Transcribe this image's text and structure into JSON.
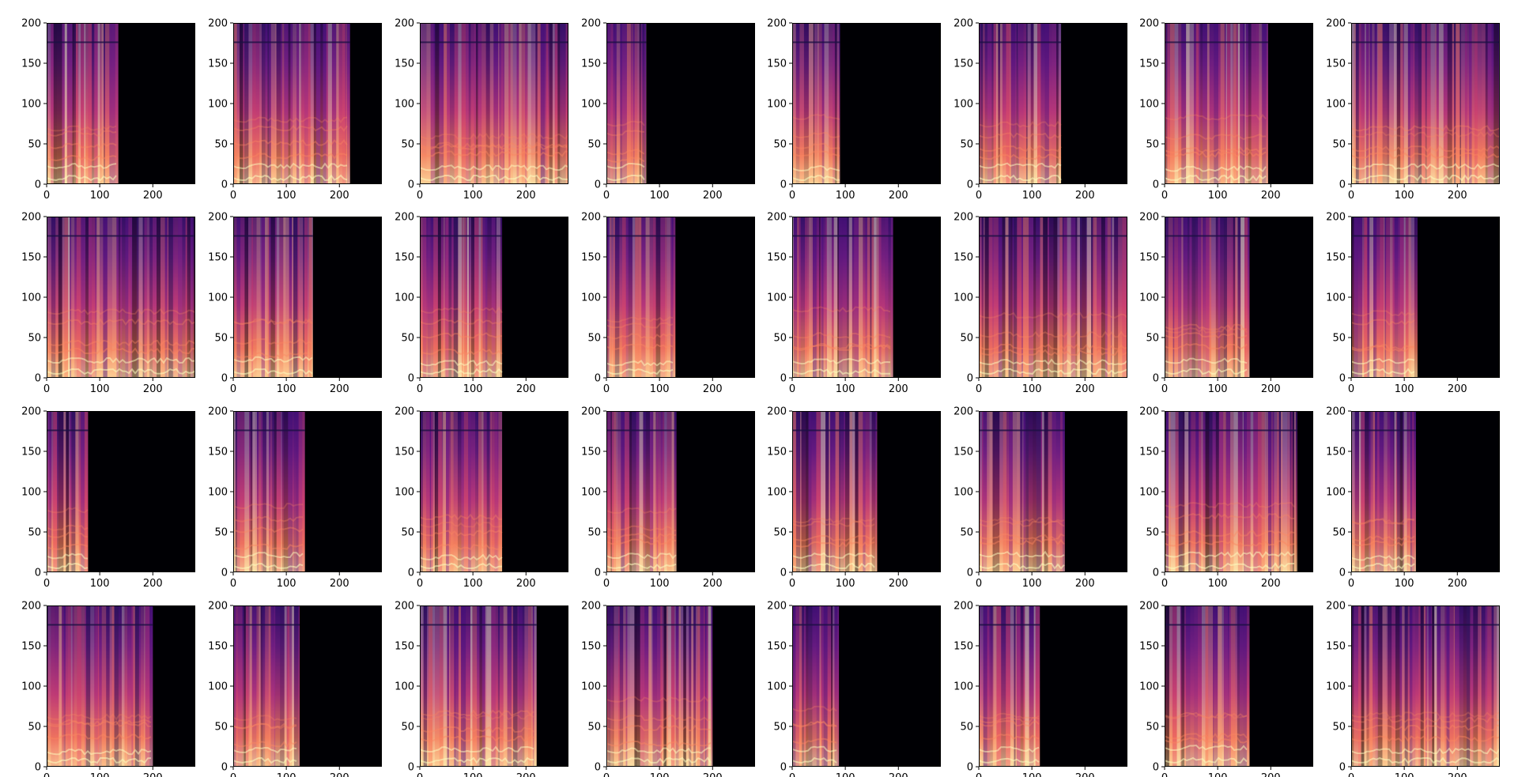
{
  "chart_data": {
    "type": "heatmap",
    "layout_rows": 4,
    "layout_cols": 8,
    "colormap": "magma",
    "grid": false,
    "axes": {
      "xlim": [
        0,
        280
      ],
      "ylim": [
        0,
        200
      ],
      "xticks": [
        0,
        100,
        200
      ],
      "yticks": [
        0,
        50,
        100,
        150,
        200
      ]
    },
    "panels": [
      {
        "index": 1,
        "filled_frames": 135
      },
      {
        "index": 2,
        "filled_frames": 220
      },
      {
        "index": 3,
        "filled_frames": 280
      },
      {
        "index": 4,
        "filled_frames": 75
      },
      {
        "index": 5,
        "filled_frames": 90
      },
      {
        "index": 6,
        "filled_frames": 155
      },
      {
        "index": 7,
        "filled_frames": 195
      },
      {
        "index": 8,
        "filled_frames": 280
      },
      {
        "index": 9,
        "filled_frames": 280
      },
      {
        "index": 10,
        "filled_frames": 150
      },
      {
        "index": 11,
        "filled_frames": 155
      },
      {
        "index": 12,
        "filled_frames": 130
      },
      {
        "index": 13,
        "filled_frames": 190
      },
      {
        "index": 14,
        "filled_frames": 280
      },
      {
        "index": 15,
        "filled_frames": 160
      },
      {
        "index": 16,
        "filled_frames": 125
      },
      {
        "index": 17,
        "filled_frames": 78
      },
      {
        "index": 18,
        "filled_frames": 135
      },
      {
        "index": 19,
        "filled_frames": 155
      },
      {
        "index": 20,
        "filled_frames": 132
      },
      {
        "index": 21,
        "filled_frames": 160
      },
      {
        "index": 22,
        "filled_frames": 162
      },
      {
        "index": 23,
        "filled_frames": 250
      },
      {
        "index": 24,
        "filled_frames": 122
      },
      {
        "index": 25,
        "filled_frames": 200
      },
      {
        "index": 26,
        "filled_frames": 125
      },
      {
        "index": 27,
        "filled_frames": 220
      },
      {
        "index": 28,
        "filled_frames": 200
      },
      {
        "index": 29,
        "filled_frames": 88
      },
      {
        "index": 30,
        "filled_frames": 115
      },
      {
        "index": 31,
        "filled_frames": 160
      },
      {
        "index": 32,
        "filled_frames": 280
      }
    ]
  }
}
